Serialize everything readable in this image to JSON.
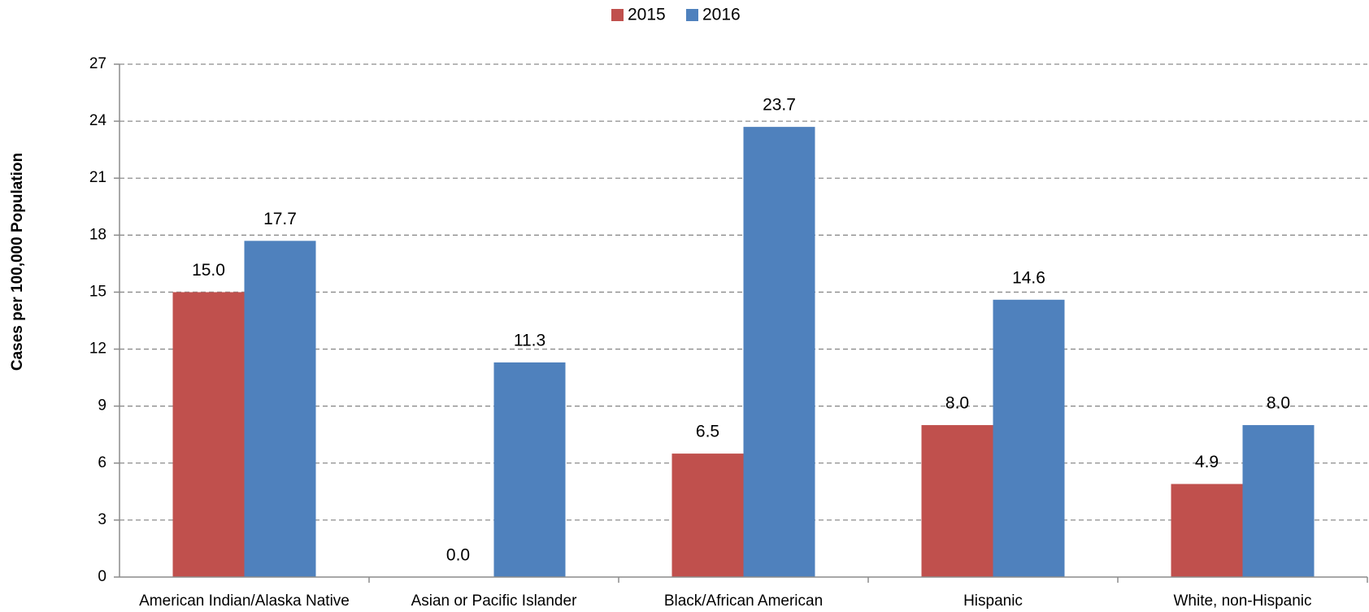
{
  "chart_data": {
    "type": "bar",
    "y_axis_label": "Cases per 100,000 Population",
    "categories": [
      "American Indian/Alaska Native",
      "Asian or Pacific Islander",
      "Black/African American",
      "Hispanic",
      "White, non-Hispanic"
    ],
    "series": [
      {
        "name": "2015",
        "color": "#c0504d",
        "values": [
          15.0,
          0.0,
          6.5,
          8.0,
          4.9
        ],
        "value_labels": [
          "15.0",
          "0.0",
          "6.5",
          "8.0",
          "4.9"
        ]
      },
      {
        "name": "2016",
        "color": "#4f81bd",
        "values": [
          17.7,
          11.3,
          23.7,
          14.6,
          8.0
        ],
        "value_labels": [
          "17.7",
          "11.3",
          "23.7",
          "14.6",
          "8.0"
        ]
      }
    ],
    "ylim": [
      0,
      27
    ],
    "yticks": [
      0,
      3,
      6,
      9,
      12,
      15,
      18,
      21,
      24,
      27
    ],
    "grid": true,
    "legend": "top"
  }
}
